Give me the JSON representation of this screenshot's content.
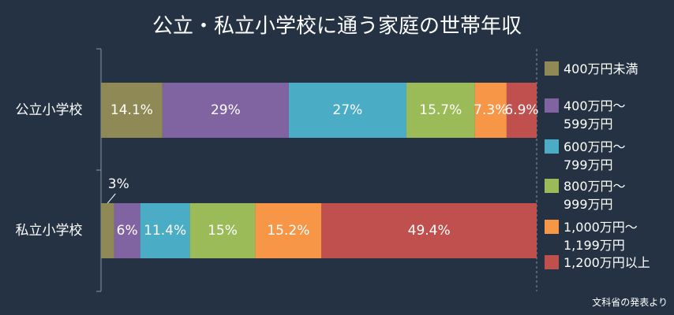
{
  "chart_data": {
    "type": "stacked-bar-horizontal",
    "title": "公立・私立小学校に通う家庭の世帯年収",
    "source": "文科省の発表より",
    "categories": [
      "公立小学校",
      "私立小学校"
    ],
    "series": [
      {
        "name": "400万円未満",
        "color": "#8f8a55",
        "values": [
          14.1,
          3
        ],
        "value_labels": [
          "14.1%",
          "3%"
        ]
      },
      {
        "name": "400万円～\n599万円",
        "color": "#8064a2",
        "values": [
          29,
          6
        ],
        "value_labels": [
          "29%",
          "6%"
        ]
      },
      {
        "name": "600万円～\n799万円",
        "color": "#4bacc6",
        "values": [
          27,
          11.4
        ],
        "value_labels": [
          "27%",
          "11.4%"
        ]
      },
      {
        "name": "800万円～\n999万円",
        "color": "#9bbb59",
        "values": [
          15.7,
          15
        ],
        "value_labels": [
          "15.7%",
          "15%"
        ]
      },
      {
        "name": "1,000万円～\n1,199万円",
        "color": "#f79646",
        "values": [
          7.3,
          15.2
        ],
        "value_labels": [
          "7.3%",
          "15.2%"
        ]
      },
      {
        "name": "1,200万円以上",
        "color": "#c0504d",
        "values": [
          6.9,
          49.4
        ],
        "value_labels": [
          "6.9%",
          "49.4%"
        ]
      }
    ]
  }
}
